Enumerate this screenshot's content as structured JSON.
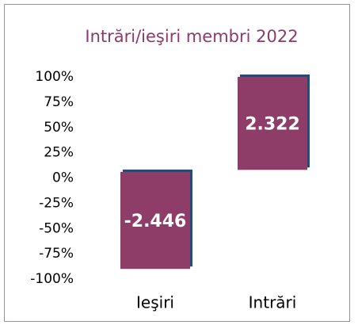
{
  "chart_data": {
    "type": "floating-bar",
    "title": "Intrări/ieşiri membri 2022",
    "bars": [
      {
        "category": "Ieşiri",
        "low": -90,
        "high": 6,
        "label": "-2.446"
      },
      {
        "category": "Intrări",
        "low": 8,
        "high": 100,
        "label": "2.322"
      }
    ],
    "color": "#8e3d68",
    "edge_color": "#1f4e79",
    "ylim": [
      -100,
      100
    ],
    "yticks": [
      {
        "value": 100,
        "label": "100%"
      },
      {
        "value": 75,
        "label": "75%"
      },
      {
        "value": 50,
        "label": "50%"
      },
      {
        "value": 25,
        "label": "25%"
      },
      {
        "value": 0,
        "label": "0%"
      },
      {
        "value": -25,
        "label": "-25%"
      },
      {
        "value": -50,
        "label": "-50%"
      },
      {
        "value": -75,
        "label": "-75%"
      },
      {
        "value": -100,
        "label": "-100%"
      }
    ]
  }
}
